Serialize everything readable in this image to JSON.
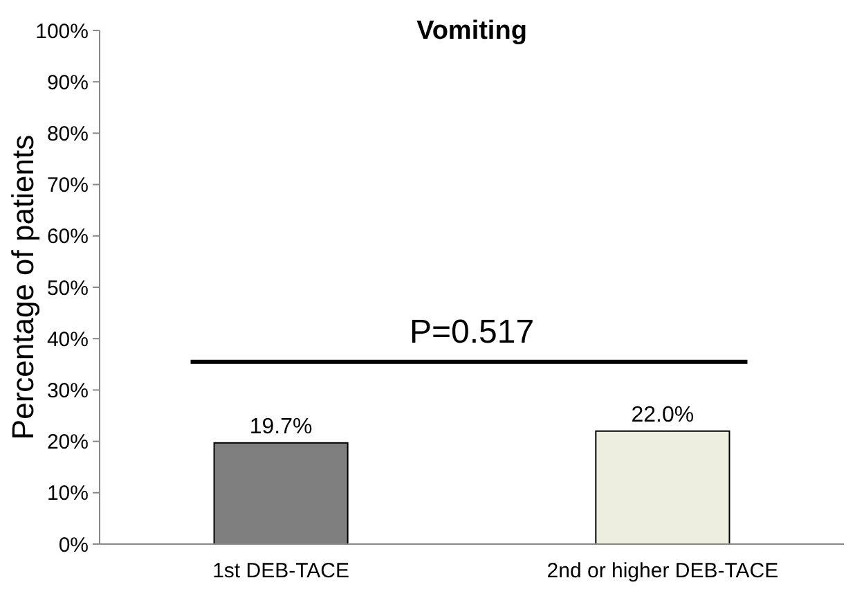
{
  "chart_data": {
    "type": "bar",
    "title": "Vomiting",
    "ylabel": "Percentage of patients",
    "categories": [
      "1st DEB-TACE",
      "2nd or higher DEB-TACE"
    ],
    "values": [
      19.7,
      22.0
    ],
    "colors": [
      "#7f7f7f",
      "#eeeee0"
    ],
    "value_labels": [
      "19.7%",
      "22.0%"
    ],
    "ylim": [
      0,
      100
    ],
    "yticks": [
      {
        "value": 0,
        "label": "0%"
      },
      {
        "value": 10,
        "label": "10%"
      },
      {
        "value": 20,
        "label": "20%"
      },
      {
        "value": 30,
        "label": "30%"
      },
      {
        "value": 40,
        "label": "40%"
      },
      {
        "value": 50,
        "label": "50%"
      },
      {
        "value": 60,
        "label": "60%"
      },
      {
        "value": 70,
        "label": "70%"
      },
      {
        "value": 80,
        "label": "80%"
      },
      {
        "value": 90,
        "label": "90%"
      },
      {
        "value": 100,
        "label": "100%"
      }
    ],
    "annotations": [
      "P=0.517"
    ],
    "grid": false
  }
}
